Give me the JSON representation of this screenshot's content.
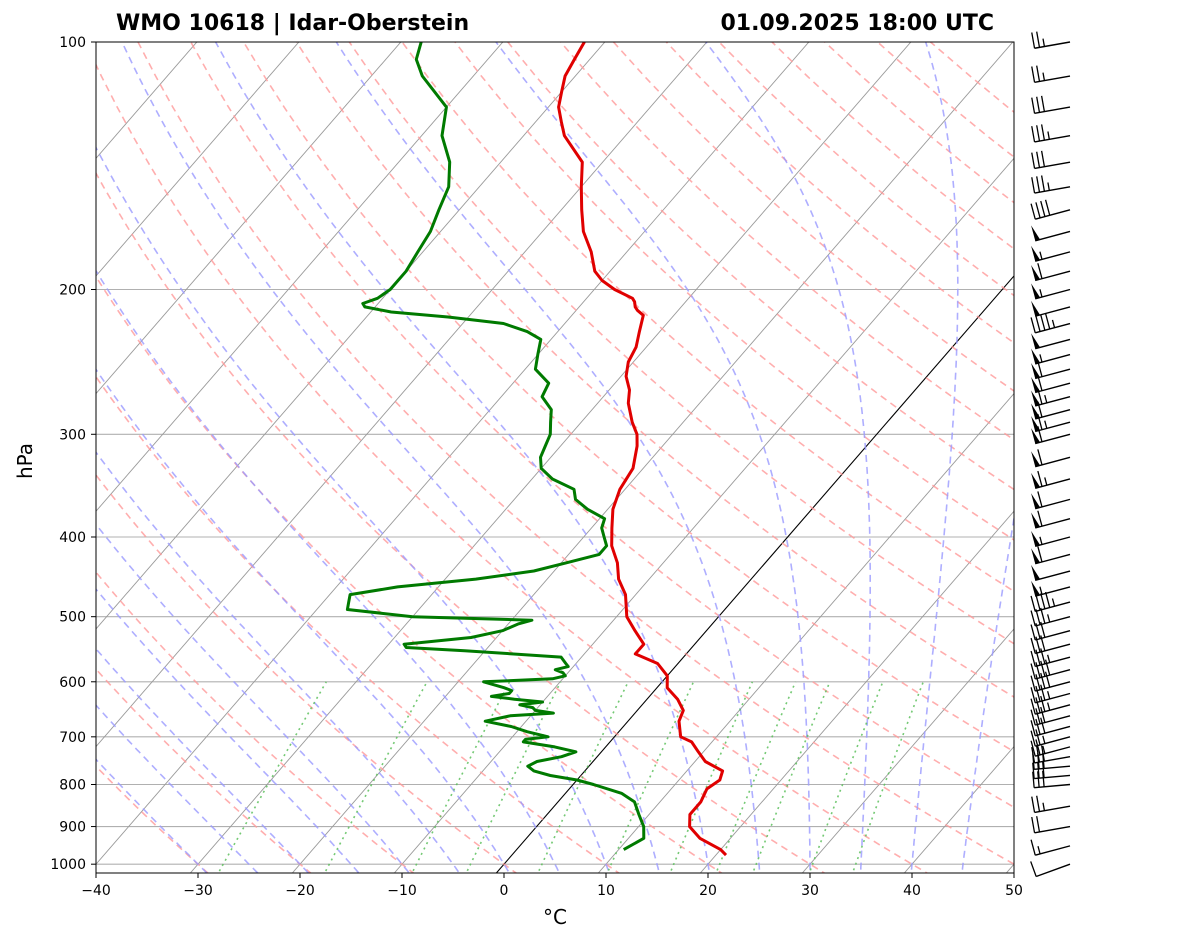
{
  "chart_data": {
    "type": "line",
    "title_left": "WMO 10618 | Idar-Oberstein",
    "title_right": "01.09.2025 18:00 UTC",
    "xlabel": "°C",
    "ylabel": "hPa",
    "xlim": [
      -40,
      50
    ],
    "ylim": [
      1025,
      100
    ],
    "x_scale": "skewed temperature (Skew-T)",
    "y_scale": "log pressure",
    "xticks": [
      -40,
      -30,
      -20,
      -10,
      0,
      10,
      20,
      30,
      40,
      50
    ],
    "yticks": [
      100,
      200,
      300,
      400,
      500,
      600,
      700,
      800,
      900,
      1000
    ],
    "grid": true,
    "colors": {
      "temperature": "#e00000",
      "dewpoint": "#007a00",
      "dry_adiabats": "#ff9a9a",
      "moist_adiabats": "#9a9aff",
      "mixing_ratio": "#5cbf5c",
      "isotherms": "#9a9a9a",
      "zero_isotherm": "#000000"
    },
    "series": [
      {
        "key": "temperature",
        "pressure": [
          975,
          960,
          930,
          900,
          870,
          840,
          810,
          790,
          770,
          750,
          730,
          710,
          700,
          690,
          670,
          650,
          630,
          610,
          590,
          570,
          555,
          540,
          520,
          500,
          470,
          450,
          430,
          410,
          390,
          370,
          350,
          330,
          310,
          300,
          290,
          275,
          265,
          255,
          245,
          235,
          225,
          215,
          212,
          210,
          207,
          205,
          200,
          195,
          190,
          180,
          170,
          160,
          150,
          140,
          130,
          125,
          120,
          115,
          110,
          105,
          100
        ],
        "temperature": [
          21,
          20,
          17,
          15,
          14,
          14,
          13.5,
          14,
          13.5,
          11,
          9.5,
          8,
          6.5,
          6,
          5,
          4.5,
          3,
          1,
          0,
          -2,
          -5,
          -5,
          -7,
          -9,
          -11,
          -13,
          -14.5,
          -16.5,
          -18,
          -19.5,
          -20.5,
          -21,
          -22.5,
          -23.5,
          -25,
          -27,
          -28,
          -29.5,
          -30.5,
          -31,
          -32,
          -33,
          -34,
          -34.5,
          -35,
          -35.5,
          -38,
          -40,
          -41.5,
          -43.5,
          -46,
          -48,
          -50,
          -52,
          -56,
          -57.5,
          -59,
          -60,
          -61,
          -61.5,
          -62
        ]
      },
      {
        "key": "dewpoint",
        "pressure": [
          960,
          930,
          900,
          870,
          840,
          820,
          800,
          790,
          780,
          770,
          760,
          750,
          740,
          730,
          720,
          710,
          705,
          700,
          690,
          680,
          670,
          660,
          655,
          650,
          645,
          640,
          635,
          630,
          625,
          620,
          615,
          610,
          600,
          595,
          590,
          585,
          580,
          575,
          570,
          560,
          550,
          545,
          540,
          530,
          520,
          510,
          505,
          500,
          490,
          480,
          470,
          460,
          450,
          440,
          430,
          420,
          410,
          400,
          390,
          380,
          370,
          360,
          350,
          340,
          330,
          320,
          310,
          300,
          290,
          280,
          270,
          260,
          250,
          240,
          230,
          225,
          220,
          216,
          213,
          210,
          208,
          205,
          200,
          190,
          180,
          170,
          160,
          150,
          140,
          130,
          120,
          110,
          105,
          100
        ],
        "dewpoint": [
          10.5,
          11.5,
          10.5,
          9,
          7.5,
          5.5,
          2,
          0,
          -3,
          -5,
          -6,
          -5.5,
          -3.5,
          -2.5,
          -5,
          -8.5,
          -8.5,
          -6.5,
          -9,
          -11,
          -14,
          -12,
          -8,
          -10,
          -10.5,
          -12,
          -10,
          -13,
          -15.5,
          -14,
          -14,
          -15,
          -17.5,
          -11,
          -10,
          -10.5,
          -11.5,
          -10.5,
          -11,
          -12,
          -22,
          -28,
          -28.5,
          -22.5,
          -20,
          -19,
          -18,
          -30,
          -37,
          -37.5,
          -38,
          -34,
          -27,
          -22,
          -19.5,
          -17,
          -17,
          -18,
          -19,
          -19.5,
          -22,
          -24,
          -25,
          -28,
          -30,
          -31,
          -31.5,
          -32,
          -33,
          -34,
          -36,
          -36.5,
          -39,
          -40,
          -41,
          -43,
          -46,
          -52,
          -58,
          -61,
          -61.5,
          -60.5,
          -60,
          -60,
          -60.5,
          -61,
          -62,
          -63,
          -65,
          -68,
          -70,
          -75,
          -77,
          -78
        ]
      }
    ],
    "wind_barbs": {
      "pressure": [
        1000,
        950,
        900,
        850,
        800,
        780,
        760,
        740,
        720,
        700,
        680,
        660,
        640,
        620,
        600,
        580,
        560,
        540,
        520,
        500,
        480,
        460,
        440,
        420,
        400,
        380,
        360,
        340,
        320,
        300,
        290,
        280,
        270,
        260,
        250,
        240,
        230,
        220,
        210,
        200,
        190,
        180,
        170,
        160,
        150,
        140,
        130,
        120,
        110,
        100
      ],
      "speed_kt": [
        10,
        15,
        20,
        25,
        30,
        30,
        30,
        30,
        25,
        25,
        30,
        30,
        35,
        35,
        40,
        40,
        35,
        30,
        30,
        35,
        45,
        55,
        50,
        60,
        55,
        60,
        60,
        65,
        60,
        60,
        65,
        60,
        65,
        60,
        60,
        55,
        50,
        45,
        50,
        55,
        60,
        55,
        50,
        40,
        35,
        30,
        35,
        30,
        25,
        25
      ],
      "direction_deg": [
        250,
        255,
        260,
        260,
        265,
        265,
        265,
        260,
        255,
        255,
        255,
        255,
        255,
        255,
        255,
        255,
        255,
        255,
        255,
        255,
        255,
        255,
        255,
        255,
        255,
        255,
        255,
        255,
        255,
        255,
        255,
        255,
        255,
        255,
        255,
        255,
        255,
        255,
        255,
        255,
        255,
        255,
        255,
        255,
        260,
        260,
        260,
        260,
        260,
        260
      ]
    }
  }
}
